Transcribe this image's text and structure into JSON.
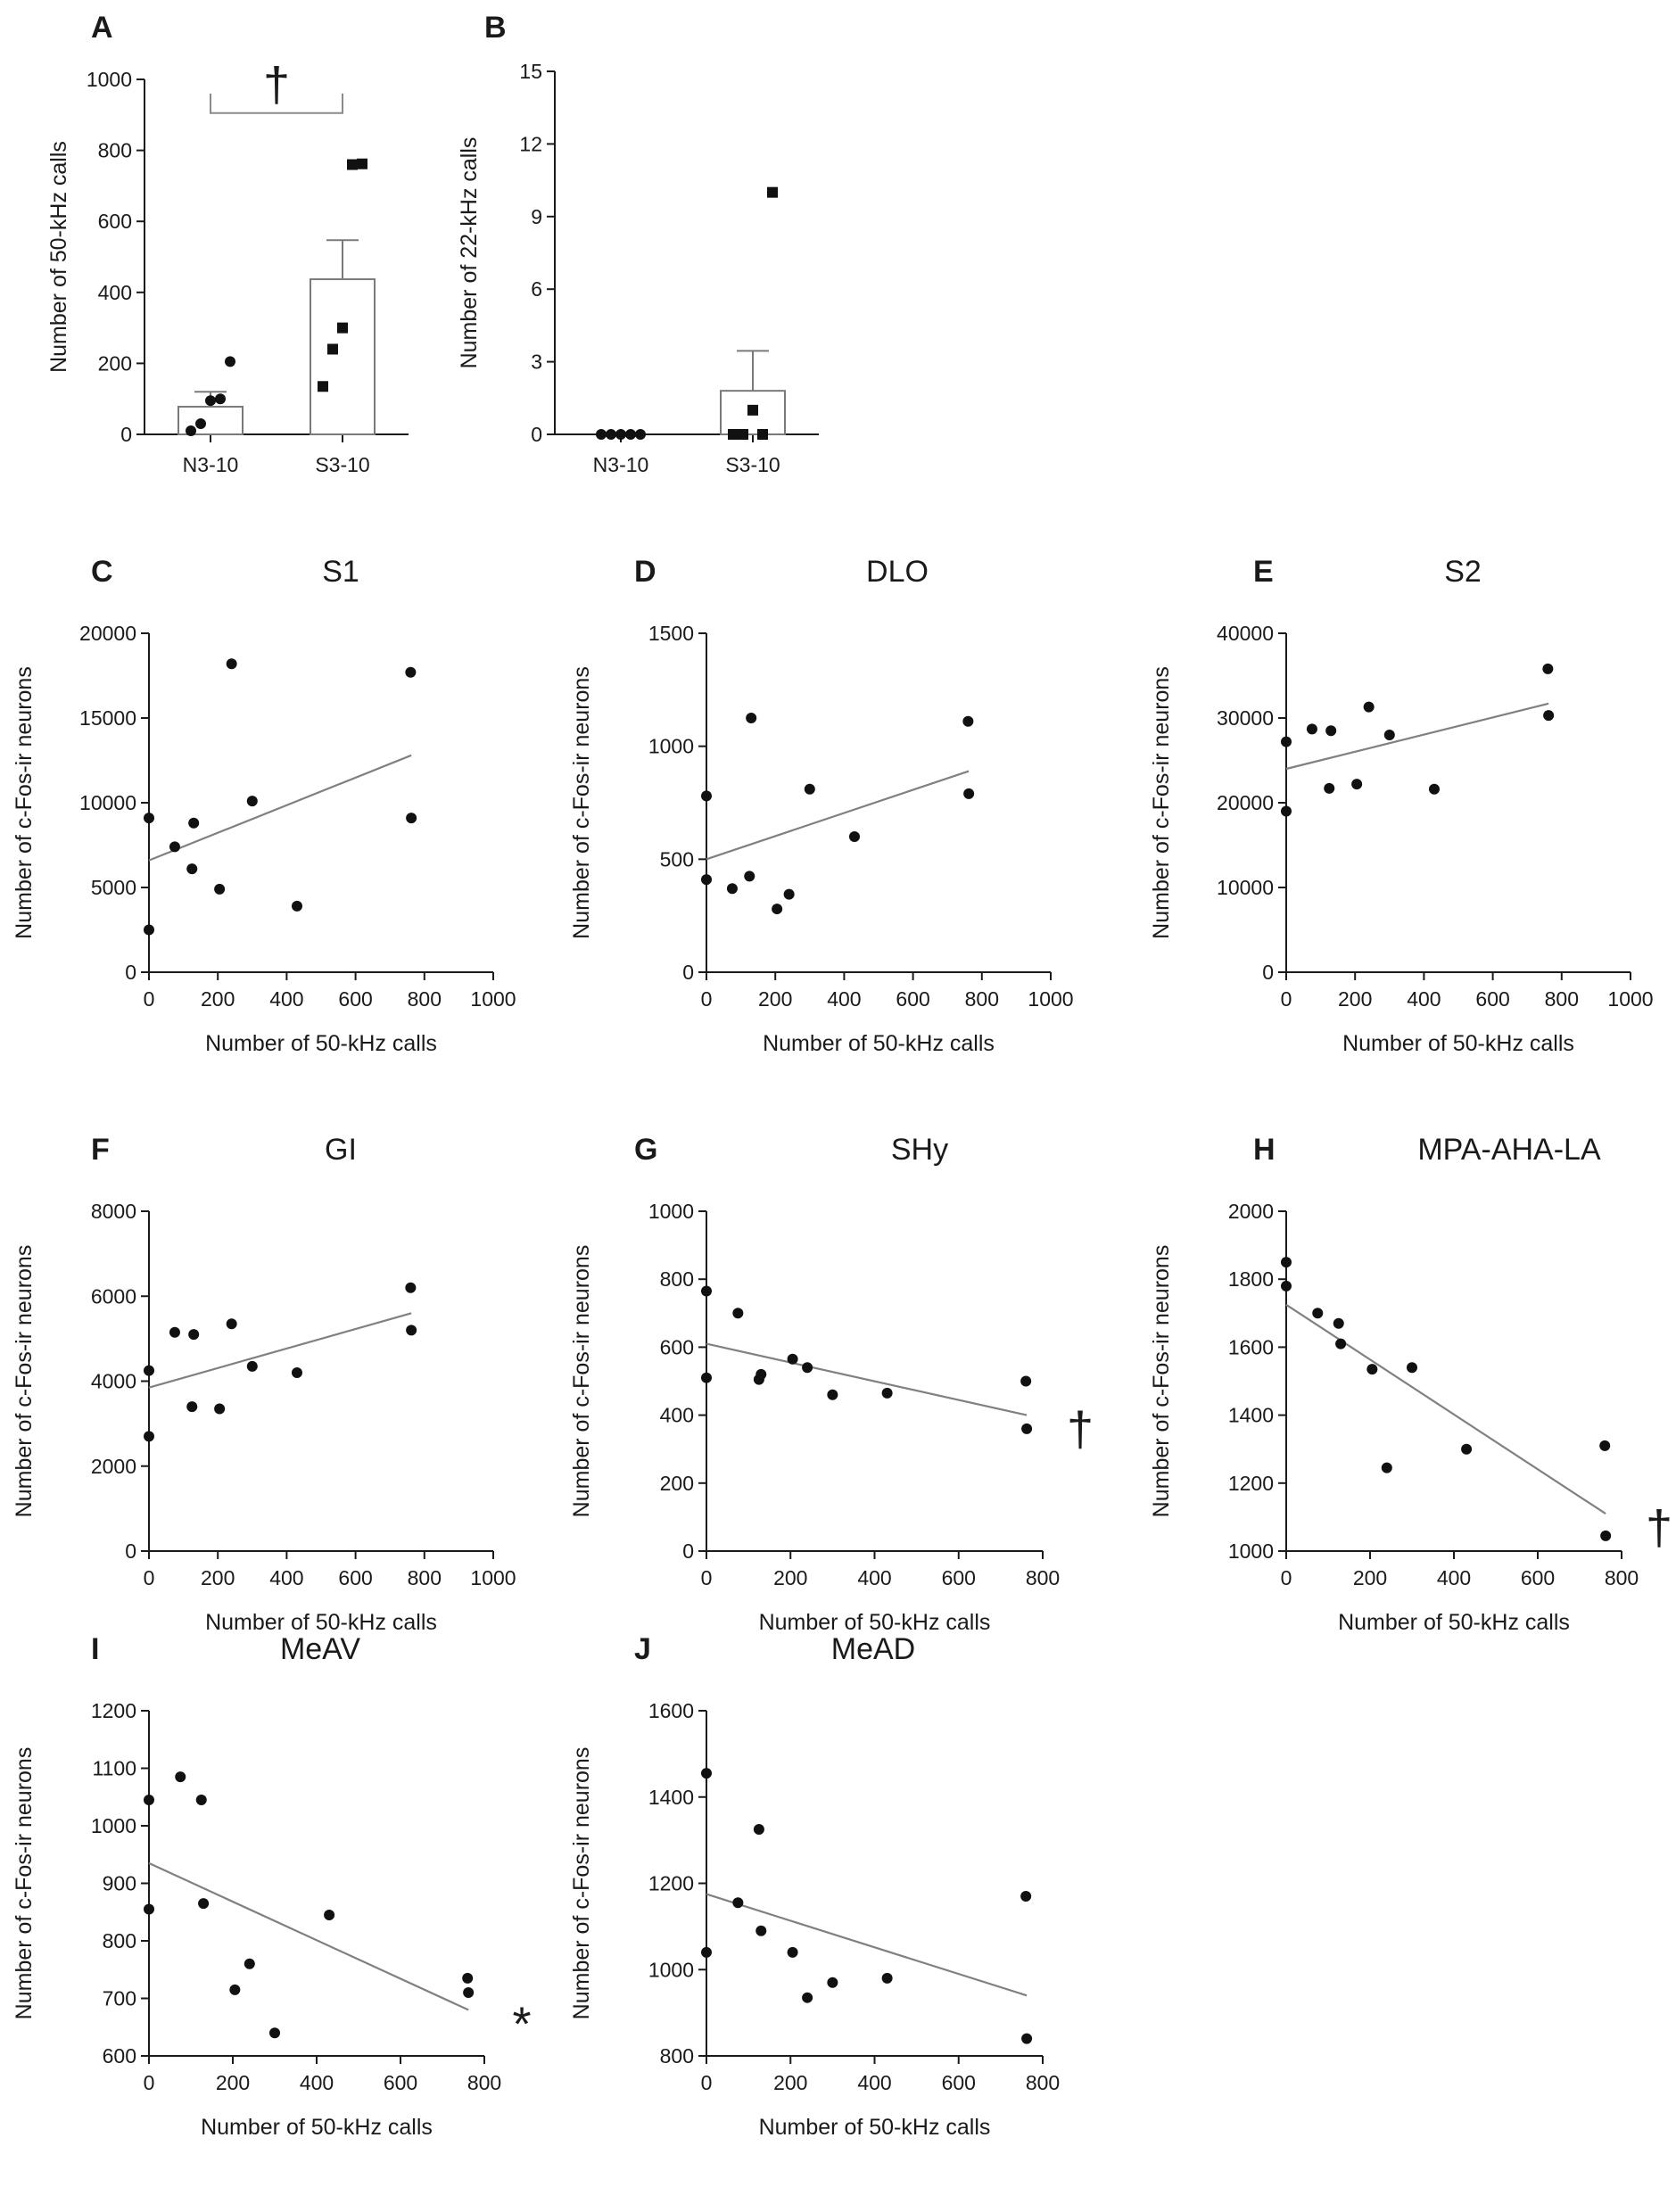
{
  "chart_data": [
    {
      "panel": "A",
      "type": "bar",
      "title": "",
      "xlabel": "",
      "ylabel": "Number of 50-kHz calls",
      "categories": [
        "N3-10",
        "S3-10"
      ],
      "means": [
        78,
        437
      ],
      "sem": [
        42,
        110
      ],
      "points": [
        [
          10,
          30,
          95,
          100,
          205
        ],
        [
          135,
          240,
          300,
          760,
          762
        ]
      ],
      "ylim": [
        0,
        1000
      ],
      "yticks": [
        0,
        200,
        400,
        600,
        800,
        1000
      ],
      "significance": {
        "mark": "†",
        "bracket": true
      }
    },
    {
      "panel": "B",
      "type": "bar",
      "title": "",
      "xlabel": "",
      "ylabel": "Number of 22-kHz calls",
      "categories": [
        "N3-10",
        "S3-10"
      ],
      "means": [
        0,
        1.8
      ],
      "sem": [
        0,
        1.65
      ],
      "points": [
        [
          0,
          0,
          0,
          0,
          0
        ],
        [
          0,
          0,
          1,
          0,
          10
        ]
      ],
      "ylim": [
        0,
        15
      ],
      "yticks": [
        0,
        3,
        6,
        9,
        12,
        15
      ],
      "significance": null
    },
    {
      "panel": "C",
      "type": "scatter",
      "title": "S1",
      "xlabel": "Number of 50-kHz calls",
      "ylabel": "Number of c-Fos-ir neurons",
      "xlim": [
        0,
        1000
      ],
      "xticks": [
        0,
        200,
        400,
        600,
        800,
        1000
      ],
      "ylim": [
        0,
        20000
      ],
      "yticks": [
        0,
        5000,
        10000,
        15000,
        20000
      ],
      "x": [
        0,
        0,
        75,
        125,
        130,
        205,
        240,
        300,
        430,
        760,
        762
      ],
      "y": [
        9100,
        2500,
        7400,
        6100,
        8800,
        4900,
        18200,
        10100,
        3900,
        17700,
        9100
      ],
      "fit": {
        "x": [
          0,
          762
        ],
        "y": [
          6600,
          12800
        ]
      },
      "significance": null
    },
    {
      "panel": "D",
      "type": "scatter",
      "title": "DLO",
      "xlabel": "Number of 50-kHz calls",
      "ylabel": "Number of c-Fos-ir neurons",
      "xlim": [
        0,
        1000
      ],
      "xticks": [
        0,
        200,
        400,
        600,
        800,
        1000
      ],
      "ylim": [
        0,
        1500
      ],
      "yticks": [
        0,
        500,
        1000,
        1500
      ],
      "x": [
        0,
        0,
        75,
        125,
        130,
        205,
        240,
        300,
        430,
        760,
        762
      ],
      "y": [
        780,
        410,
        370,
        425,
        1125,
        280,
        345,
        810,
        600,
        1110,
        790
      ],
      "fit": {
        "x": [
          0,
          762
        ],
        "y": [
          500,
          890
        ]
      },
      "significance": null
    },
    {
      "panel": "E",
      "type": "scatter",
      "title": "S2",
      "xlabel": "Number of 50-kHz calls",
      "ylabel": "Number of c-Fos-ir neurons",
      "xlim": [
        0,
        1000
      ],
      "xticks": [
        0,
        200,
        400,
        600,
        800,
        1000
      ],
      "ylim": [
        0,
        40000
      ],
      "yticks": [
        0,
        10000,
        20000,
        30000,
        40000
      ],
      "x": [
        0,
        0,
        75,
        125,
        130,
        205,
        240,
        300,
        430,
        760,
        762
      ],
      "y": [
        27200,
        19000,
        28700,
        21700,
        28500,
        22200,
        31300,
        28000,
        21600,
        35800,
        30300
      ],
      "fit": {
        "x": [
          0,
          762
        ],
        "y": [
          24000,
          31700
        ]
      },
      "significance": null
    },
    {
      "panel": "F",
      "type": "scatter",
      "title": "GI",
      "xlabel": "Number of 50-kHz calls",
      "ylabel": "Number of c-Fos-ir neurons",
      "xlim": [
        0,
        1000
      ],
      "xticks": [
        0,
        200,
        400,
        600,
        800,
        1000
      ],
      "ylim": [
        0,
        8000
      ],
      "yticks": [
        0,
        2000,
        4000,
        6000,
        8000
      ],
      "x": [
        0,
        0,
        75,
        125,
        130,
        205,
        240,
        300,
        430,
        760,
        762
      ],
      "y": [
        4250,
        2700,
        5150,
        3400,
        5100,
        3350,
        5350,
        4350,
        4200,
        6200,
        5200
      ],
      "fit": {
        "x": [
          0,
          762
        ],
        "y": [
          3850,
          5600
        ]
      },
      "significance": null
    },
    {
      "panel": "G",
      "type": "scatter",
      "title": "SHy",
      "xlabel": "Number of 50-kHz calls",
      "ylabel": "Number of c-Fos-ir neurons",
      "xlim": [
        0,
        800
      ],
      "xticks": [
        0,
        200,
        400,
        600,
        800
      ],
      "ylim": [
        0,
        1000
      ],
      "yticks": [
        0,
        200,
        400,
        600,
        800,
        1000
      ],
      "x": [
        0,
        0,
        75,
        125,
        130,
        205,
        240,
        300,
        430,
        760,
        762
      ],
      "y": [
        765,
        510,
        700,
        505,
        520,
        565,
        540,
        460,
        465,
        500,
        360
      ],
      "fit": {
        "x": [
          0,
          762
        ],
        "y": [
          610,
          400
        ]
      },
      "significance": "†"
    },
    {
      "panel": "H",
      "type": "scatter",
      "title": "MPA-AHA-LA",
      "xlabel": "Number of 50-kHz calls",
      "ylabel": "Number of c-Fos-ir neurons",
      "xlim": [
        0,
        800
      ],
      "xticks": [
        0,
        200,
        400,
        600,
        800
      ],
      "ylim": [
        1000,
        2000
      ],
      "yticks": [
        1000,
        1200,
        1400,
        1600,
        1800,
        2000
      ],
      "x": [
        0,
        0,
        75,
        125,
        130,
        205,
        240,
        300,
        430,
        760,
        762
      ],
      "y": [
        1850,
        1780,
        1700,
        1670,
        1610,
        1535,
        1245,
        1540,
        1300,
        1310,
        1045
      ],
      "fit": {
        "x": [
          0,
          762
        ],
        "y": [
          1725,
          1110
        ]
      },
      "significance": "†"
    },
    {
      "panel": "I",
      "type": "scatter",
      "title": "MeAV",
      "xlabel": "Number of 50-kHz calls",
      "ylabel": "Number of c-Fos-ir neurons",
      "xlim": [
        0,
        800
      ],
      "xticks": [
        0,
        200,
        400,
        600,
        800
      ],
      "ylim": [
        600,
        1200
      ],
      "yticks": [
        600,
        700,
        800,
        900,
        1000,
        1100,
        1200
      ],
      "x": [
        0,
        0,
        75,
        125,
        130,
        205,
        240,
        300,
        430,
        760,
        762
      ],
      "y": [
        1045,
        855,
        1085,
        1045,
        865,
        715,
        760,
        640,
        845,
        735,
        710
      ],
      "fit": {
        "x": [
          0,
          762
        ],
        "y": [
          935,
          680
        ]
      },
      "significance": "*"
    },
    {
      "panel": "J",
      "type": "scatter",
      "title": "MeAD",
      "xlabel": "Number of 50-kHz calls",
      "ylabel": "Number of c-Fos-ir neurons",
      "xlim": [
        0,
        800
      ],
      "xticks": [
        0,
        200,
        400,
        600,
        800
      ],
      "ylim": [
        800,
        1600
      ],
      "yticks": [
        800,
        1000,
        1200,
        1400,
        1600
      ],
      "x": [
        0,
        0,
        75,
        125,
        130,
        205,
        240,
        300,
        430,
        760,
        762
      ],
      "y": [
        1455,
        1040,
        1155,
        1325,
        1090,
        1040,
        935,
        970,
        980,
        1170,
        840
      ],
      "fit": {
        "x": [
          0,
          762
        ],
        "y": [
          1175,
          940
        ]
      },
      "significance": null
    }
  ]
}
